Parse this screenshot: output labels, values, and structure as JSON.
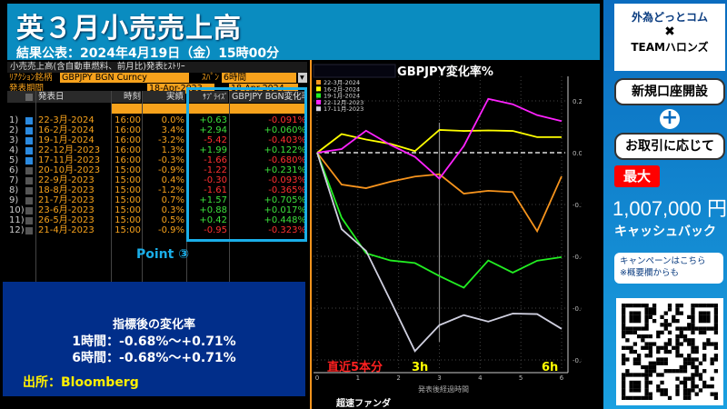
{
  "header": {
    "title": "英３月小売売上高",
    "subtitle": "結果公表：2024年4月19日（金）15時00分"
  },
  "table": {
    "title": "小売売上高(含自動車燃料、前月比)発表ﾋｽﾄﾘｰ",
    "reaction_label": "ﾘｱｸｼｮﾝ銘柄",
    "reaction_value": "GBPJPY BGN Curncy",
    "span_label": "ｽﾊﾟﾝ",
    "span_value": "6時間",
    "period_label": "発表期間",
    "period_from": "18-Apr-2023",
    "period_to": "18-Apr-2024",
    "columns": [
      "発表日",
      "時刻",
      "実績",
      "ｻﾌﾟﾗｲｽﾞ",
      "GBPJPY BGN変化率"
    ],
    "rows": [
      {
        "n": "1)",
        "checked": true,
        "date": "22-3月-2024",
        "time": "16:00",
        "actual": "0.0%",
        "surprise": "+0.63",
        "change": "-0.091%"
      },
      {
        "n": "2)",
        "checked": true,
        "date": "16-2月-2024",
        "time": "16:00",
        "actual": "3.4%",
        "surprise": "+2.94",
        "change": "+0.060%"
      },
      {
        "n": "3)",
        "checked": true,
        "date": "19-1月-2024",
        "time": "16:00",
        "actual": "-3.2%",
        "surprise": "-5.42",
        "change": "-0.403%"
      },
      {
        "n": "4)",
        "checked": true,
        "date": "22-12月-2023",
        "time": "16:00",
        "actual": "1.3%",
        "surprise": "+1.99",
        "change": "+0.122%"
      },
      {
        "n": "5)",
        "checked": true,
        "date": "17-11月-2023",
        "time": "16:00",
        "actual": "-0.3%",
        "surprise": "-1.66",
        "change": "-0.680%"
      },
      {
        "n": "6)",
        "checked": false,
        "date": "20-10月-2023",
        "time": "15:00",
        "actual": "-0.9%",
        "surprise": "-1.22",
        "change": "+0.231%"
      },
      {
        "n": "7)",
        "checked": false,
        "date": "22-9月-2023",
        "time": "15:00",
        "actual": "0.4%",
        "surprise": "-0.30",
        "change": "-0.093%"
      },
      {
        "n": "8)",
        "checked": false,
        "date": "18-8月-2023",
        "time": "15:00",
        "actual": "-1.2%",
        "surprise": "-1.61",
        "change": "-0.365%"
      },
      {
        "n": "9)",
        "checked": false,
        "date": "21-7月-2023",
        "time": "15:00",
        "actual": "0.7%",
        "surprise": "+1.57",
        "change": "+0.705%"
      },
      {
        "n": "10)",
        "checked": false,
        "date": "23-6月-2023",
        "time": "15:00",
        "actual": "0.3%",
        "surprise": "+0.88",
        "change": "+0.017%"
      },
      {
        "n": "11)",
        "checked": false,
        "date": "26-5月-2023",
        "time": "15:00",
        "actual": "0.5%",
        "surprise": "+0.42",
        "change": "+0.448%"
      },
      {
        "n": "12)",
        "checked": false,
        "date": "21-4月-2023",
        "time": "15:00",
        "actual": "-0.9%",
        "surprise": "-0.95",
        "change": "-0.323%"
      }
    ]
  },
  "point_label": "Point ③",
  "note": {
    "title": "指標後の変化率",
    "line1": "1時間：-0.68%～+0.71%",
    "line2": "6時間：-0.68%～+0.71%",
    "source": "出所：Bloomberg"
  },
  "chart_data": {
    "type": "line",
    "title": "GBPJPY変化率%",
    "xlabel": "発表後経過時間",
    "ylabel": "",
    "xlim": [
      0,
      6
    ],
    "ylim": [
      -0.85,
      0.3
    ],
    "xticks": [
      0,
      1,
      2,
      3,
      4,
      5,
      6
    ],
    "yticks": [
      0.2,
      0,
      -0.2,
      -0.4,
      -0.6,
      -0.8
    ],
    "ytick_labels": [
      "0.20",
      "0.00",
      "-0.20",
      "-0.40",
      "-0.60",
      "-0.80"
    ],
    "grid": true,
    "legend_position": "top-left",
    "zero_line": "dashed",
    "x": [
      0,
      0.6,
      1.2,
      1.8,
      2.4,
      3.0,
      3.6,
      4.2,
      4.8,
      5.4,
      6.0
    ],
    "series": [
      {
        "name": "22-3月-2024",
        "color": "#f7941d",
        "values": [
          0,
          -0.123,
          -0.137,
          -0.112,
          -0.092,
          -0.083,
          -0.158,
          -0.147,
          -0.152,
          -0.303,
          -0.091
        ]
      },
      {
        "name": "16-2月-2024",
        "color": "#ffff00",
        "values": [
          0,
          0.072,
          0.051,
          0.034,
          0.006,
          0.088,
          0.084,
          0.086,
          0.084,
          0.06,
          0.06
        ]
      },
      {
        "name": "19-1月-2024",
        "color": "#22ee22",
        "values": [
          0,
          -0.251,
          -0.388,
          -0.416,
          -0.426,
          -0.476,
          -0.521,
          -0.416,
          -0.463,
          -0.417,
          -0.403
        ]
      },
      {
        "name": "22-12月-2023",
        "color": "#ff22ff",
        "values": [
          0,
          0.014,
          0.085,
          0.03,
          -0.016,
          -0.1,
          0.026,
          0.208,
          0.187,
          0.145,
          0.122
        ]
      },
      {
        "name": "17-11月-2023",
        "color": "#d0d0e0",
        "values": [
          0,
          -0.295,
          -0.379,
          -0.571,
          -0.766,
          -0.666,
          -0.627,
          -0.652,
          -0.621,
          -0.623,
          -0.68
        ]
      }
    ],
    "annotations": [
      {
        "text": "直近5本分",
        "color": "#ff2020"
      },
      {
        "text": "3h",
        "color": "#ffff00"
      },
      {
        "text": "6h",
        "color": "#ffff00"
      }
    ]
  },
  "footer_brand": "超速ファンダ",
  "ad": {
    "brand1": "外為どっとコム",
    "cross": "✖",
    "brand2": "TEAMハロンズ",
    "pill1": "新規口座開設",
    "plus": "+",
    "pill2": "お取引に応じて",
    "max": "最大",
    "amount": "1,007,000 円",
    "cashback": "キャッシュバック",
    "bubble1": "キャンペーンはこちら",
    "bubble2": "※概要欄からも"
  }
}
